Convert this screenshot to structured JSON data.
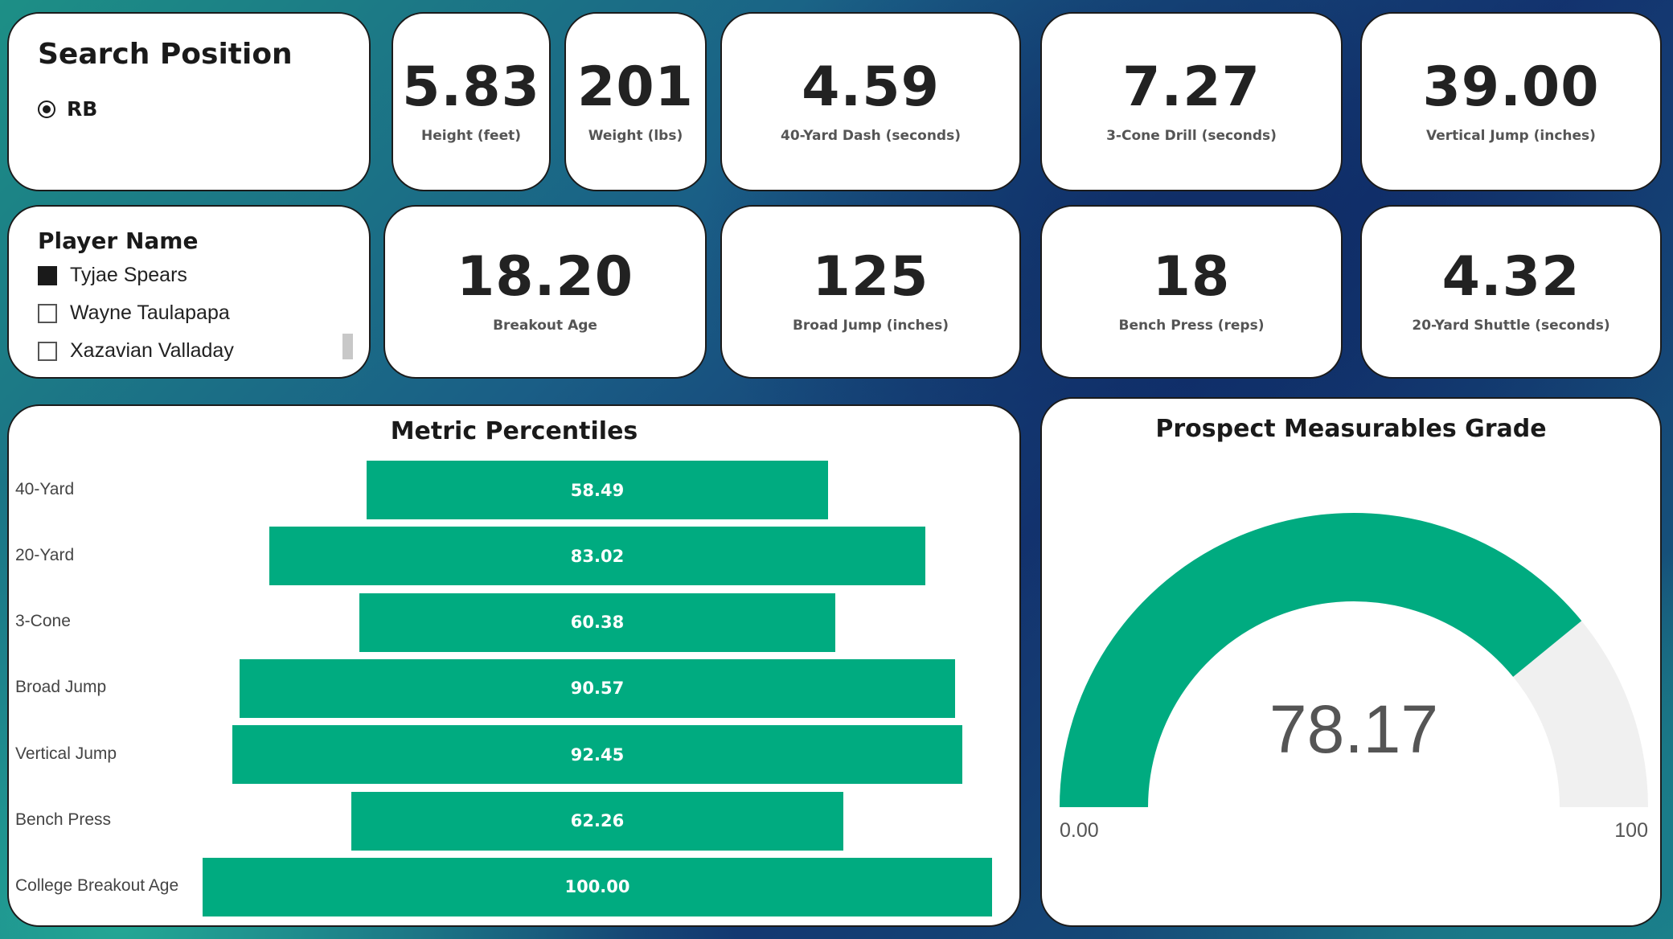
{
  "position_slicer": {
    "title": "Search Position",
    "selected": "RB"
  },
  "player_slicer": {
    "title": "Player Name",
    "players": [
      {
        "name": "Tyjae Spears",
        "checked": true
      },
      {
        "name": "Wayne Taulapapa",
        "checked": false
      },
      {
        "name": "Xazavian Valladay",
        "checked": false
      }
    ]
  },
  "kpis": {
    "height": {
      "value": "5.83",
      "label": "Height (feet)"
    },
    "weight": {
      "value": "201",
      "label": "Weight (lbs)"
    },
    "dash40": {
      "value": "4.59",
      "label": "40-Yard Dash (seconds)"
    },
    "cone3": {
      "value": "7.27",
      "label": "3-Cone Drill (seconds)"
    },
    "vertical": {
      "value": "39.00",
      "label": "Vertical Jump (inches)"
    },
    "breakout": {
      "value": "18.20",
      "label": "Breakout Age"
    },
    "broad": {
      "value": "125",
      "label": "Broad Jump (inches)"
    },
    "bench": {
      "value": "18",
      "label": "Bench Press (reps)"
    },
    "shuttle20": {
      "value": "4.32",
      "label": "20-Yard Shuttle (seconds)"
    }
  },
  "percentiles": {
    "title": "Metric Percentiles",
    "bar_color": "#00ab80"
  },
  "chart_data": [
    {
      "type": "bar",
      "title": "Metric Percentiles",
      "orientation": "horizontal-centered",
      "categories": [
        "40-Yard",
        "20-Yard",
        "3-Cone",
        "Broad Jump",
        "Vertical Jump",
        "Bench Press",
        "College Breakout Age"
      ],
      "values": [
        58.49,
        83.02,
        60.38,
        90.57,
        92.45,
        62.26,
        100.0
      ],
      "value_labels": [
        "58.49",
        "83.02",
        "60.38",
        "90.57",
        "92.45",
        "62.26",
        "100.00"
      ],
      "xlim": [
        0,
        100
      ],
      "color": "#00ab80"
    },
    {
      "type": "gauge",
      "title": "Prospect Measurables Grade",
      "value": 78.17,
      "value_label": "78.17",
      "min_label": "0.00",
      "max_label": "100",
      "range": [
        0,
        100
      ],
      "fill_color": "#00ab80",
      "track_color": "#f0f0f0"
    }
  ],
  "grade": {
    "title": "Prospect Measurables Grade",
    "value_label": "78.17",
    "min_label": "0.00",
    "max_label": "100"
  }
}
